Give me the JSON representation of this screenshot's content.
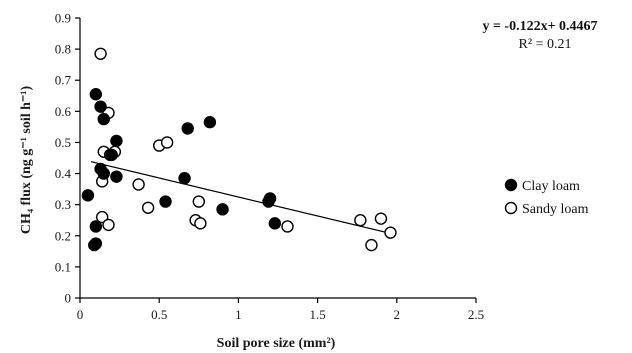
{
  "chart_data": {
    "type": "scatter",
    "xlabel": "Soil pore size (mm²)",
    "ylabel": "CH₄ flux (ng g⁻¹ soil h⁻¹)",
    "xlim": [
      0,
      2.5
    ],
    "ylim": [
      0,
      0.9
    ],
    "x_ticks": [
      "0",
      "0.5",
      "1",
      "1.5",
      "2",
      "2.5"
    ],
    "y_ticks": [
      "0",
      "0.1",
      "0.2",
      "0.3",
      "0.4",
      "0.5",
      "0.6",
      "0.7",
      "0.8",
      "0.9"
    ],
    "grid": false,
    "legend_position": "right",
    "annotation": {
      "equation": "y = -0.122x+ 0.4467",
      "r_squared": "R² = 0.21"
    },
    "trendline": {
      "slope": -0.122,
      "intercept": 0.4467,
      "x_range": [
        0.07,
        1.97
      ]
    },
    "series": [
      {
        "name": "Clay loam",
        "marker": "filled",
        "color": "#000000",
        "points": [
          [
            0.05,
            0.33
          ],
          [
            0.1,
            0.655
          ],
          [
            0.13,
            0.615
          ],
          [
            0.15,
            0.575
          ],
          [
            0.1,
            0.23
          ],
          [
            0.1,
            0.175
          ],
          [
            0.09,
            0.17
          ],
          [
            0.13,
            0.415
          ],
          [
            0.15,
            0.4
          ],
          [
            0.2,
            0.46
          ],
          [
            0.23,
            0.505
          ],
          [
            0.23,
            0.39
          ],
          [
            0.54,
            0.31
          ],
          [
            0.66,
            0.385
          ],
          [
            0.68,
            0.545
          ],
          [
            0.82,
            0.565
          ],
          [
            0.9,
            0.285
          ],
          [
            1.19,
            0.31
          ],
          [
            1.2,
            0.32
          ],
          [
            1.23,
            0.24
          ]
        ]
      },
      {
        "name": "Sandy loam",
        "marker": "open",
        "color": "#000000",
        "points": [
          [
            0.13,
            0.785
          ],
          [
            0.18,
            0.595
          ],
          [
            0.15,
            0.47
          ],
          [
            0.19,
            0.46
          ],
          [
            0.22,
            0.47
          ],
          [
            0.14,
            0.375
          ],
          [
            0.14,
            0.26
          ],
          [
            0.18,
            0.235
          ],
          [
            0.37,
            0.365
          ],
          [
            0.43,
            0.29
          ],
          [
            0.5,
            0.49
          ],
          [
            0.55,
            0.5
          ],
          [
            0.73,
            0.25
          ],
          [
            0.76,
            0.24
          ],
          [
            0.75,
            0.31
          ],
          [
            1.31,
            0.23
          ],
          [
            1.77,
            0.25
          ],
          [
            1.84,
            0.17
          ],
          [
            1.9,
            0.255
          ],
          [
            1.96,
            0.21
          ]
        ]
      }
    ]
  }
}
